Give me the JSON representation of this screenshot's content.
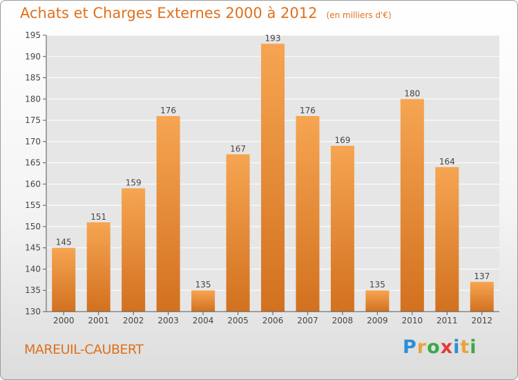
{
  "chart_data": {
    "type": "bar",
    "title": "Achats et Charges Externes 2000 à 2012",
    "unit": "(en milliers d'€)",
    "categories": [
      "2000",
      "2001",
      "2002",
      "2003",
      "2004",
      "2005",
      "2006",
      "2007",
      "2008",
      "2009",
      "2010",
      "2011",
      "2012"
    ],
    "values": [
      145,
      151,
      159,
      176,
      135,
      167,
      193,
      176,
      169,
      135,
      180,
      164,
      137
    ],
    "ylim": [
      130,
      195
    ],
    "yticks": [
      130,
      135,
      140,
      145,
      150,
      155,
      160,
      165,
      170,
      175,
      180,
      185,
      190,
      195
    ],
    "grid": true,
    "xlabel": "",
    "ylabel": ""
  },
  "location": "MAREUIL-CAUBERT",
  "logo": {
    "letters": [
      "P",
      "r",
      "o",
      "x",
      "i",
      "t",
      "i"
    ],
    "colors": [
      "#2a8fd6",
      "#e8a33c",
      "#3aa84a",
      "#e23b3b",
      "#2a8fd6",
      "#e8a33c",
      "#3aa84a"
    ]
  },
  "colors": {
    "bar_light": "#f6a552",
    "bar_dark": "#d2711f",
    "accent": "#e0701c",
    "plot_bg": "#e6e6e6",
    "grid": "#ffffff"
  }
}
